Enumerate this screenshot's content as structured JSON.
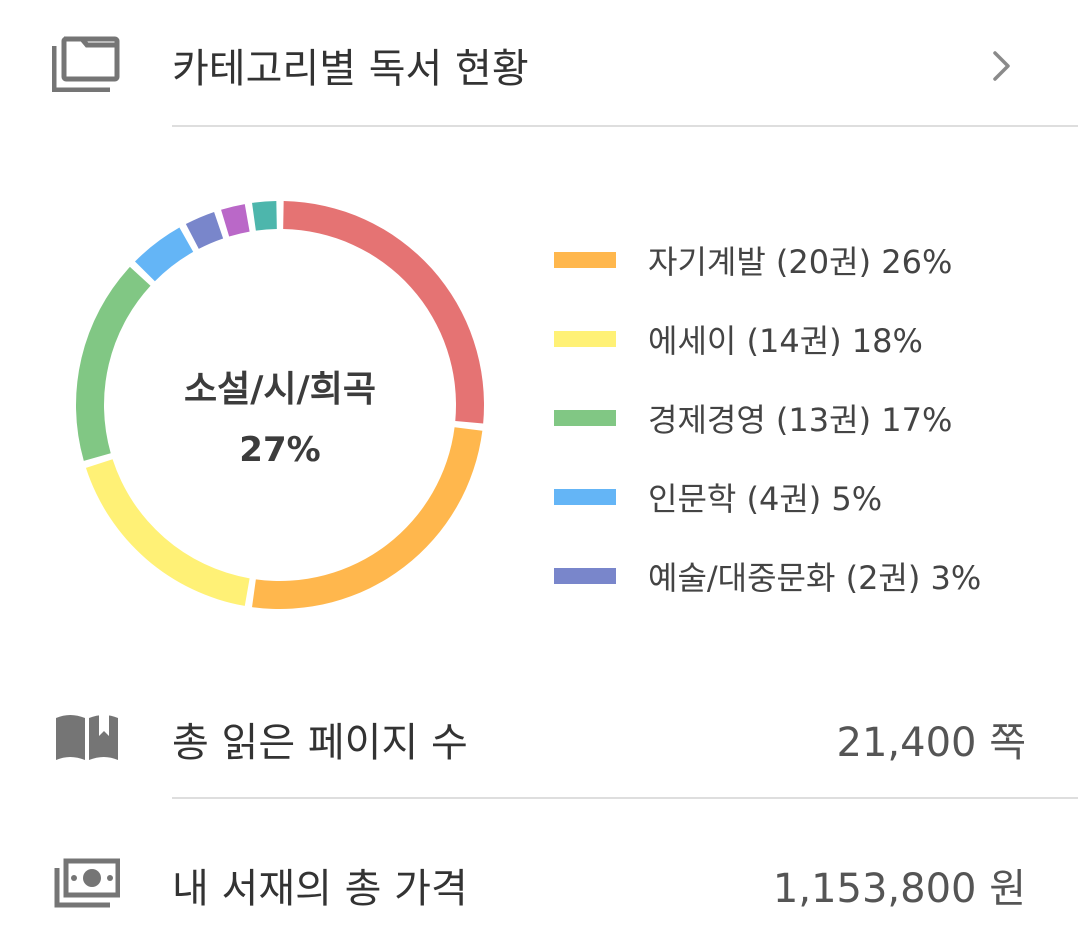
{
  "header": {
    "title": "카테고리별 독서 현황"
  },
  "center": {
    "category": "소설/시/희곡",
    "percent": "27%"
  },
  "legend": [
    {
      "text": "자기계발 (20권)  26%",
      "color": "#FFB74D"
    },
    {
      "text": "에세이 (14권)  18%",
      "color": "#FFF176"
    },
    {
      "text": "경제경영 (13권)  17%",
      "color": "#81C784"
    },
    {
      "text": "인문학 (4권)  5%",
      "color": "#64B5F6"
    },
    {
      "text": "예술/대중문화 (2권)  3%",
      "color": "#7986CB"
    }
  ],
  "stats": {
    "pages_label": "총 읽은 페이지 수",
    "pages_value": "21,400 쪽",
    "price_label": "내 서재의 총 가격",
    "price_value": "1,153,800 원"
  },
  "chart_data": {
    "type": "pie",
    "title": "카테고리별 독서 현황",
    "slices": [
      {
        "label": "소설/시/희곡",
        "value": 27,
        "color": "#E57373"
      },
      {
        "label": "자기계발",
        "value": 26,
        "color": "#FFB74D"
      },
      {
        "label": "에세이",
        "value": 18,
        "color": "#FFF176"
      },
      {
        "label": "경제경영",
        "value": 17,
        "color": "#81C784"
      },
      {
        "label": "인문학",
        "value": 5,
        "color": "#64B5F6"
      },
      {
        "value": 3,
        "color": "#7986CB"
      },
      {
        "value": 2.5,
        "color": "#BA68C8"
      },
      {
        "value": 2.5,
        "color": "#4DB6AC"
      }
    ],
    "legend_position": "right"
  }
}
